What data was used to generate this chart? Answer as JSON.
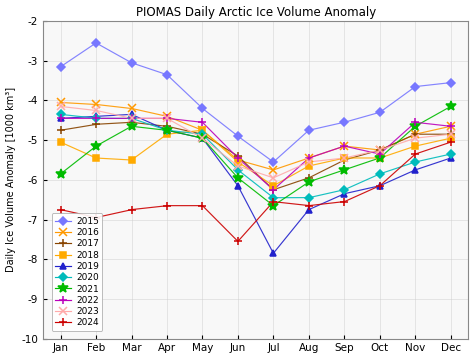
{
  "title": "PIOMAS Daily Arctic Ice Volume Anomaly",
  "ylabel": "Daily Ice Volume Anomaly [1000 km³]",
  "ylim": [
    -10,
    -2
  ],
  "yticks": [
    -10,
    -9,
    -8,
    -7,
    -6,
    -5,
    -4,
    -3,
    -2
  ],
  "months": [
    "Jan",
    "Feb",
    "Mar",
    "Apr",
    "May",
    "Jun",
    "Jul",
    "Aug",
    "Sep",
    "Oct",
    "Nov",
    "Dec"
  ],
  "years": [
    2015,
    2016,
    2017,
    2018,
    2019,
    2020,
    2021,
    2022,
    2023,
    2024
  ],
  "colors": {
    "2015": "#7777ff",
    "2016": "#ff9900",
    "2017": "#884400",
    "2018": "#ffaa00",
    "2019": "#2222cc",
    "2020": "#00bbbb",
    "2021": "#00bb00",
    "2022": "#bb00bb",
    "2023": "#ffaaaa",
    "2024": "#cc0000"
  },
  "markers": {
    "2015": "D",
    "2016": "x",
    "2017": "+",
    "2018": "s",
    "2019": "^",
    "2020": "D",
    "2021": "*",
    "2022": "+",
    "2023": "x",
    "2024": "+"
  },
  "data": {
    "2015": [
      -3.15,
      -2.55,
      -3.05,
      -3.35,
      -4.2,
      -4.9,
      -5.55,
      -4.75,
      -4.55,
      -4.3,
      -3.65,
      -3.55
    ],
    "2016": [
      -4.05,
      -4.1,
      -4.2,
      -4.4,
      -4.75,
      -5.5,
      -5.75,
      -5.45,
      -5.15,
      -5.25,
      -4.85,
      -4.65
    ],
    "2017": [
      -4.75,
      -4.6,
      -4.55,
      -4.65,
      -4.85,
      -5.4,
      -6.25,
      -5.95,
      -5.5,
      -5.25,
      -4.85,
      -4.85
    ],
    "2018": [
      -5.05,
      -5.45,
      -5.5,
      -4.85,
      -4.75,
      -5.55,
      -6.15,
      -5.65,
      -5.45,
      -5.45,
      -5.15,
      -4.95
    ],
    "2019": [
      -4.45,
      -4.4,
      -4.35,
      -4.75,
      -4.95,
      -6.15,
      -7.85,
      -6.75,
      -6.35,
      -6.15,
      -5.75,
      -5.45
    ],
    "2020": [
      -4.35,
      -4.45,
      -4.45,
      -4.75,
      -4.85,
      -5.75,
      -6.45,
      -6.45,
      -6.25,
      -5.85,
      -5.55,
      -5.35
    ],
    "2021": [
      -5.85,
      -5.15,
      -4.65,
      -4.75,
      -4.95,
      -5.95,
      -6.65,
      -6.05,
      -5.75,
      -5.45,
      -4.65,
      -4.15
    ],
    "2022": [
      -4.45,
      -4.45,
      -4.45,
      -4.45,
      -4.55,
      -5.45,
      -6.25,
      -5.45,
      -5.15,
      -5.35,
      -4.55,
      -4.65
    ],
    "2023": [
      -4.15,
      -4.25,
      -4.45,
      -4.45,
      -4.95,
      -5.65,
      -5.95,
      -5.55,
      -5.45,
      -5.25,
      -4.95,
      -4.85
    ],
    "2024": [
      -6.75,
      -6.95,
      -6.75,
      -6.65,
      -6.65,
      -7.55,
      -6.55,
      -6.65,
      -6.55,
      -6.15,
      -5.35,
      -5.05
    ]
  },
  "bg_color": "#f8f8f8",
  "grid_color": "#cccccc",
  "title_fontsize": 8.5,
  "label_fontsize": 7,
  "tick_fontsize": 7.5,
  "legend_fontsize": 6.5
}
